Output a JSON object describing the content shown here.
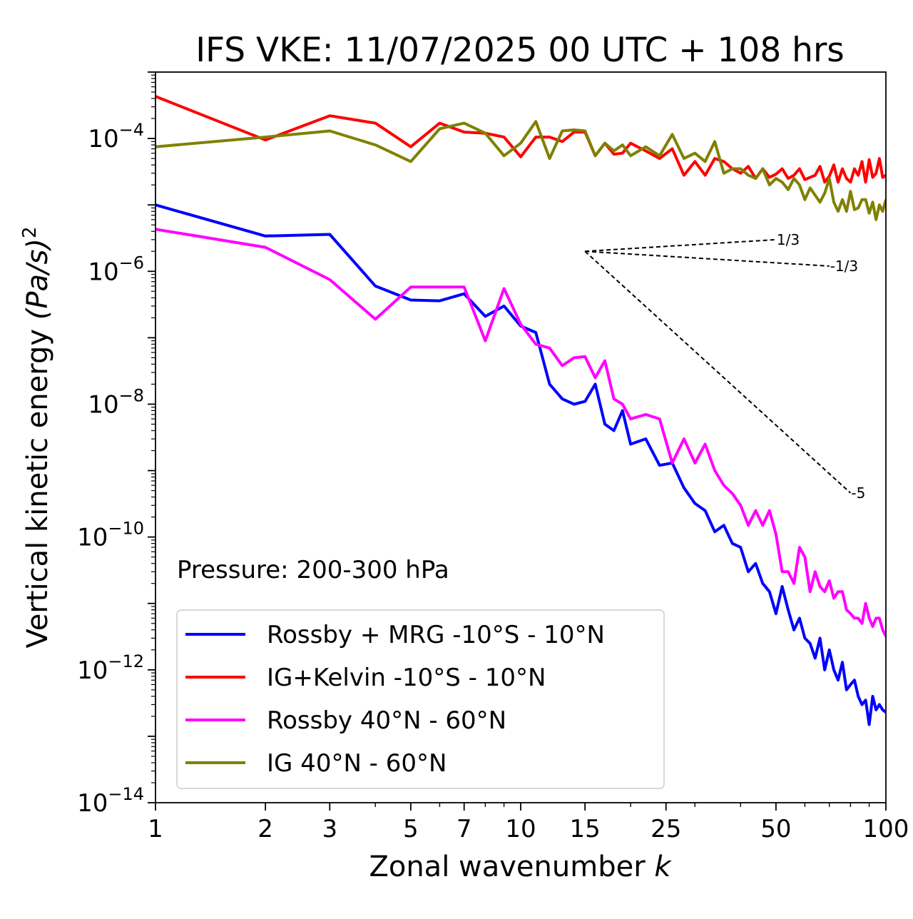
{
  "chart_data": {
    "type": "line",
    "title": "IFS VKE: 11/07/2025 00 UTC + 108 hrs",
    "xlabel": "Zonal wavenumber",
    "xlabel_var": "k",
    "ylabel": "Vertical kinetic energy",
    "ylabel_unit": "(Pa/s)",
    "ylabel_unit_exp": "2",
    "xscale": "log",
    "yscale": "log",
    "xlim": [
      1,
      100
    ],
    "ylim": [
      1e-14,
      0.001
    ],
    "xticks": [
      {
        "value": 1,
        "label": "1"
      },
      {
        "value": 2,
        "label": "2"
      },
      {
        "value": 3,
        "label": "3"
      },
      {
        "value": 5,
        "label": "5"
      },
      {
        "value": 7,
        "label": "7"
      },
      {
        "value": 10,
        "label": "10"
      },
      {
        "value": 15,
        "label": "15"
      },
      {
        "value": 25,
        "label": "25"
      },
      {
        "value": 50,
        "label": "50"
      },
      {
        "value": 100,
        "label": "100"
      }
    ],
    "yticks": [
      {
        "value": 1e-14,
        "base": "10",
        "exp": "−14"
      },
      {
        "value": 1e-12,
        "base": "10",
        "exp": "−12"
      },
      {
        "value": 1e-10,
        "base": "10",
        "exp": "−10"
      },
      {
        "value": 1e-08,
        "base": "10",
        "exp": "−8"
      },
      {
        "value": 1e-06,
        "base": "10",
        "exp": "−6"
      },
      {
        "value": 0.0001,
        "base": "10",
        "exp": "−4"
      }
    ],
    "annotation": "Pressure: 200-300 hPa",
    "legend_position": "lower-left",
    "reference_slopes": [
      {
        "label": "1/3",
        "x": [
          15,
          50
        ],
        "y": [
          2e-06,
          3e-06
        ]
      },
      {
        "label": "-1/3",
        "x": [
          15,
          70
        ],
        "y": [
          2e-06,
          1.2e-06
        ]
      },
      {
        "label": "-5",
        "x": [
          15,
          80
        ],
        "y": [
          2e-06,
          4.6e-10
        ]
      }
    ],
    "series": [
      {
        "name": "Rossby + MRG -10°S - 10°N",
        "color": "#0000ff",
        "x": [
          1,
          2,
          3,
          4,
          5,
          6,
          7,
          8,
          9,
          10,
          11,
          12,
          13,
          14,
          15,
          16,
          17,
          18,
          19,
          20,
          22,
          24,
          26,
          28,
          30,
          32,
          34,
          36,
          38,
          40,
          42,
          44,
          46,
          48,
          50,
          52,
          54,
          56,
          58,
          60,
          62,
          64,
          66,
          68,
          70,
          72,
          74,
          76,
          78,
          80,
          82,
          84,
          86,
          88,
          90,
          92,
          94,
          96,
          98,
          100
        ],
        "y": [
          1e-05,
          3.4e-06,
          3.6e-06,
          6e-07,
          3.7e-07,
          3.6e-07,
          4.6e-07,
          2.1e-07,
          3e-07,
          1.5e-07,
          1.2e-07,
          2e-08,
          1.2e-08,
          1e-08,
          1.1e-08,
          2e-08,
          5e-09,
          4e-09,
          8e-09,
          2.5e-09,
          3e-09,
          1.2e-09,
          1.3e-09,
          5.5e-10,
          3.2e-10,
          2.5e-10,
          1.2e-10,
          1.5e-10,
          8e-11,
          7e-11,
          3e-11,
          4e-11,
          2e-11,
          1.5e-11,
          7e-12,
          1.8e-11,
          8e-12,
          4e-12,
          6e-12,
          3e-12,
          2.5e-12,
          1.5e-12,
          3e-12,
          1e-12,
          2e-12,
          1e-12,
          7e-13,
          1.3e-12,
          5e-13,
          6e-13,
          7e-13,
          4e-13,
          3e-13,
          3.5e-13,
          1.5e-13,
          4e-13,
          2.5e-13,
          3e-13,
          2.5e-13,
          2.3e-13
        ]
      },
      {
        "name": "IG+Kelvin -10°S - 10°N",
        "color": "#ff0000",
        "x": [
          1,
          2,
          3,
          4,
          5,
          6,
          7,
          8,
          9,
          10,
          11,
          12,
          13,
          14,
          15,
          16,
          17,
          18,
          19,
          20,
          22,
          24,
          26,
          28,
          30,
          32,
          34,
          36,
          38,
          40,
          42,
          44,
          46,
          48,
          50,
          52,
          54,
          56,
          58,
          60,
          62,
          64,
          66,
          68,
          70,
          72,
          74,
          76,
          78,
          80,
          82,
          84,
          86,
          88,
          90,
          92,
          94,
          96,
          98,
          100
        ],
        "y": [
          0.00043,
          9.5e-05,
          0.00022,
          0.00017,
          7.5e-05,
          0.00017,
          0.000125,
          0.00012,
          0.000105,
          5.3e-05,
          0.000105,
          0.000105,
          9e-05,
          0.000125,
          0.000125,
          5.5e-05,
          8.5e-05,
          5.8e-05,
          6e-05,
          8.5e-05,
          6.5e-05,
          5e-05,
          7e-05,
          2.8e-05,
          4.5e-05,
          2.8e-05,
          5e-05,
          4.5e-05,
          3.5e-05,
          3e-05,
          3.8e-05,
          2.5e-05,
          3.5e-05,
          2.6e-05,
          2.9e-05,
          3.5e-05,
          2.5e-05,
          2.8e-05,
          3.5e-05,
          2.4e-05,
          2.6e-05,
          2.8e-05,
          3.8e-05,
          2.2e-05,
          2.7e-05,
          4e-05,
          2.2e-05,
          3.5e-05,
          2.5e-05,
          2.2e-05,
          3.5e-05,
          2.8e-05,
          4.5e-05,
          2.2e-05,
          4.8e-05,
          2.6e-05,
          3e-05,
          5e-05,
          2.6e-05,
          2.8e-05
        ]
      },
      {
        "name": "Rossby 40°N - 60°N",
        "color": "#ff00ff",
        "x": [
          1,
          2,
          3,
          4,
          5,
          6,
          7,
          8,
          9,
          10,
          11,
          12,
          13,
          14,
          15,
          16,
          17,
          18,
          19,
          20,
          22,
          24,
          26,
          28,
          30,
          32,
          34,
          36,
          38,
          40,
          42,
          44,
          46,
          48,
          50,
          52,
          54,
          56,
          58,
          60,
          62,
          64,
          66,
          68,
          70,
          72,
          74,
          76,
          78,
          80,
          82,
          84,
          86,
          88,
          90,
          92,
          94,
          96,
          98,
          100
        ],
        "y": [
          4.3e-06,
          2.3e-06,
          7.5e-07,
          1.9e-07,
          5.8e-07,
          5.8e-07,
          5.8e-07,
          9e-08,
          5.5e-07,
          1.6e-07,
          8e-08,
          7e-08,
          3.8e-08,
          5e-08,
          5.2e-08,
          2.5e-08,
          4.5e-08,
          1.2e-08,
          1e-08,
          6e-09,
          7e-09,
          6e-09,
          1.3e-09,
          3e-09,
          1.3e-09,
          2.5e-09,
          1e-09,
          6e-10,
          4.5e-10,
          3e-10,
          1.5e-10,
          2.5e-10,
          1.5e-10,
          2.5e-10,
          1.1e-10,
          3e-11,
          3e-11,
          2e-11,
          7e-11,
          5e-11,
          1.5e-11,
          3e-11,
          1.8e-11,
          1.5e-11,
          2.2e-11,
          1.2e-11,
          1.5e-11,
          1.5e-11,
          8e-12,
          7e-12,
          6e-12,
          6e-12,
          5e-12,
          1e-11,
          6e-12,
          4.5e-12,
          6e-12,
          6e-12,
          4e-12,
          3.2e-12
        ]
      },
      {
        "name": "IG 40°N - 60°N",
        "color": "#808000",
        "x": [
          1,
          2,
          3,
          4,
          5,
          6,
          7,
          8,
          9,
          10,
          11,
          12,
          13,
          14,
          15,
          16,
          17,
          18,
          19,
          20,
          22,
          24,
          26,
          28,
          30,
          32,
          34,
          36,
          38,
          40,
          42,
          44,
          46,
          48,
          50,
          52,
          54,
          56,
          58,
          60,
          62,
          64,
          66,
          68,
          70,
          72,
          74,
          76,
          78,
          80,
          82,
          84,
          86,
          88,
          90,
          92,
          94,
          96,
          98,
          100
        ],
        "y": [
          7.5e-05,
          0.000105,
          0.00013,
          8e-05,
          4.5e-05,
          0.00014,
          0.00017,
          0.00012,
          5.5e-05,
          8.5e-05,
          0.00018,
          5e-05,
          0.00013,
          0.000135,
          0.00013,
          5.5e-05,
          8.5e-05,
          6.5e-05,
          8e-05,
          5.5e-05,
          7.5e-05,
          5.5e-05,
          0.000115,
          5e-05,
          6e-05,
          4.5e-05,
          9e-05,
          3e-05,
          3.5e-05,
          3.5e-05,
          2.8e-05,
          2.5e-05,
          3.5e-05,
          2e-05,
          2.5e-05,
          2.2e-05,
          1.7e-05,
          2.5e-05,
          2e-05,
          1.2e-05,
          1.8e-05,
          1.4e-05,
          1.1e-05,
          1.5e-05,
          2.5e-05,
          1.1e-05,
          8e-06,
          1.2e-05,
          8e-06,
          1.6e-05,
          8.5e-06,
          9e-06,
          1.2e-05,
          1.2e-05,
          7.5e-06,
          1.1e-05,
          6e-06,
          1e-05,
          8e-06,
          1.2e-05
        ]
      }
    ]
  }
}
